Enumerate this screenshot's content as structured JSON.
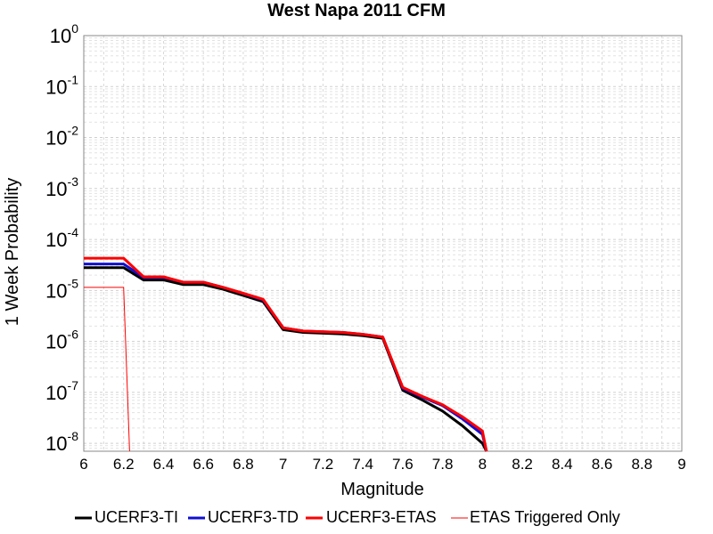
{
  "chart_data": {
    "type": "line",
    "title": "West Napa 2011 CFM",
    "xlabel": "Magnitude",
    "ylabel": "1 Week Probability",
    "xlim": [
      6,
      9
    ],
    "ylim": [
      7e-09,
      1
    ],
    "yscale": "log",
    "grid": true,
    "legend_position": "bottom",
    "x_ticks": [
      "6",
      "6.2",
      "6.4",
      "6.6",
      "6.8",
      "7",
      "7.2",
      "7.4",
      "7.6",
      "7.8",
      "8",
      "8.2",
      "8.4",
      "8.6",
      "8.8",
      "9"
    ],
    "y_ticks": [
      {
        "base": "10",
        "exp": "0",
        "value": 1
      },
      {
        "base": "10",
        "exp": "-1",
        "value": 0.1
      },
      {
        "base": "10",
        "exp": "-2",
        "value": 0.01
      },
      {
        "base": "10",
        "exp": "-3",
        "value": 0.001
      },
      {
        "base": "10",
        "exp": "-4",
        "value": 0.0001
      },
      {
        "base": "10",
        "exp": "-5",
        "value": 1e-05
      },
      {
        "base": "10",
        "exp": "-6",
        "value": 1e-06
      },
      {
        "base": "10",
        "exp": "-7",
        "value": 1e-07
      },
      {
        "base": "10",
        "exp": "-8",
        "value": 1e-08
      }
    ],
    "series": [
      {
        "name": "UCERF3-TI",
        "color": "#000000",
        "width": 3,
        "x": [
          6.0,
          6.1,
          6.2,
          6.3,
          6.4,
          6.5,
          6.6,
          6.7,
          6.8,
          6.9,
          7.0,
          7.1,
          7.2,
          7.3,
          7.4,
          7.5,
          7.6,
          7.7,
          7.8,
          7.9,
          8.0,
          8.02
        ],
        "y": [
          2.8e-05,
          2.8e-05,
          2.8e-05,
          1.6e-05,
          1.6e-05,
          1.3e-05,
          1.3e-05,
          1.05e-05,
          8e-06,
          6e-06,
          1.7e-06,
          1.5e-06,
          1.45e-06,
          1.4e-06,
          1.3e-06,
          1.15e-06,
          1.1e-07,
          7e-08,
          4.3e-08,
          2.2e-08,
          1e-08,
          7e-09
        ]
      },
      {
        "name": "UCERF3-TD",
        "color": "#1010d0",
        "width": 3,
        "x": [
          6.0,
          6.1,
          6.2,
          6.3,
          6.4,
          6.5,
          6.6,
          6.7,
          6.8,
          6.9,
          7.0,
          7.1,
          7.2,
          7.3,
          7.4,
          7.5,
          7.6,
          7.7,
          7.8,
          7.9,
          8.0,
          8.02
        ],
        "y": [
          3.3e-05,
          3.3e-05,
          3.3e-05,
          1.8e-05,
          1.8e-05,
          1.45e-05,
          1.45e-05,
          1.15e-05,
          8.7e-06,
          6.5e-06,
          1.85e-06,
          1.6e-06,
          1.55e-06,
          1.5e-06,
          1.38e-06,
          1.22e-06,
          1.2e-07,
          8e-08,
          5.5e-08,
          3e-08,
          1.5e-08,
          7e-09
        ]
      },
      {
        "name": "UCERF3-ETAS",
        "color": "#ff0000",
        "width": 3,
        "x": [
          6.0,
          6.1,
          6.2,
          6.3,
          6.4,
          6.5,
          6.6,
          6.7,
          6.8,
          6.9,
          7.0,
          7.1,
          7.2,
          7.3,
          7.4,
          7.5,
          7.6,
          7.7,
          7.8,
          7.9,
          8.0,
          8.02
        ],
        "y": [
          4.3e-05,
          4.3e-05,
          4.3e-05,
          1.85e-05,
          1.85e-05,
          1.45e-05,
          1.45e-05,
          1.15e-05,
          8.8e-06,
          6.7e-06,
          1.85e-06,
          1.6e-06,
          1.55e-06,
          1.5e-06,
          1.38e-06,
          1.22e-06,
          1.25e-07,
          8.3e-08,
          5.7e-08,
          3.3e-08,
          1.75e-08,
          7e-09
        ]
      },
      {
        "name": "ETAS Triggered Only",
        "color": "#ff0000",
        "width": 1,
        "x": [
          6.0,
          6.1,
          6.2,
          6.23
        ],
        "y": [
          1.15e-05,
          1.15e-05,
          1.15e-05,
          7e-09
        ]
      }
    ]
  }
}
